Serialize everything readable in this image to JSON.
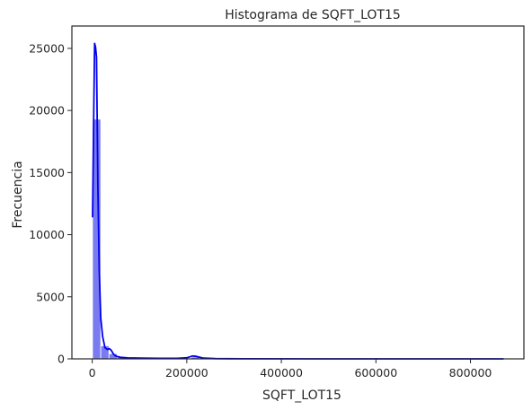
{
  "chart_data": {
    "type": "histogram",
    "title": "Histograma de SQFT_LOT15",
    "xlabel": "SQFT_LOT15",
    "ylabel": "Frecuencia",
    "xlim": [
      -43000,
      913000
    ],
    "ylim": [
      0,
      26800
    ],
    "xticks": [
      "0",
      "200000",
      "400000",
      "600000",
      "800000"
    ],
    "yticks": [
      "0",
      "5000",
      "10000",
      "15000",
      "20000",
      "25000"
    ],
    "bin_width": 17400,
    "bins": [
      {
        "x0": 651,
        "x1": 18051,
        "count": 19300
      },
      {
        "x0": 18051,
        "x1": 35451,
        "count": 1050
      },
      {
        "x0": 35451,
        "x1": 52851,
        "count": 420
      },
      {
        "x0": 52851,
        "x1": 70251,
        "count": 180
      },
      {
        "x0": 70251,
        "x1": 87651,
        "count": 110
      },
      {
        "x0": 87651,
        "x1": 105051,
        "count": 80
      },
      {
        "x0": 105051,
        "x1": 122451,
        "count": 50
      },
      {
        "x0": 122451,
        "x1": 139851,
        "count": 30
      },
      {
        "x0": 139851,
        "x1": 157251,
        "count": 20
      },
      {
        "x0": 157251,
        "x1": 174651,
        "count": 15
      },
      {
        "x0": 174651,
        "x1": 192051,
        "count": 15
      },
      {
        "x0": 192051,
        "x1": 209451,
        "count": 30
      },
      {
        "x0": 209451,
        "x1": 226851,
        "count": 150
      },
      {
        "x0": 226851,
        "x1": 244251,
        "count": 20
      },
      {
        "x0": 244251,
        "x1": 261651,
        "count": 5
      },
      {
        "x0": 261651,
        "x1": 279051,
        "count": 3
      },
      {
        "x0": 279051,
        "x1": 296451,
        "count": 2
      },
      {
        "x0": 296451,
        "x1": 313851,
        "count": 2
      }
    ],
    "kde": {
      "x": [
        651,
        3000,
        5000,
        7000,
        9000,
        12000,
        15000,
        18000,
        22000,
        27000,
        32000,
        36000,
        40000,
        45000,
        50000,
        60000,
        75000,
        100000,
        140000,
        180000,
        200000,
        212000,
        220000,
        235000,
        260000,
        320000,
        500000,
        870000
      ],
      "y": [
        11400,
        19000,
        25400,
        25100,
        24300,
        14000,
        7000,
        3300,
        1800,
        900,
        750,
        820,
        700,
        380,
        220,
        120,
        80,
        60,
        40,
        40,
        90,
        230,
        200,
        60,
        20,
        5,
        0,
        0
      ]
    },
    "colors": {
      "bar_fill": "#6b6bf0",
      "bar_edge": "#ffffff",
      "kde_line": "#0000ee",
      "axes": "#262626"
    },
    "grid": false,
    "legend": "none"
  }
}
